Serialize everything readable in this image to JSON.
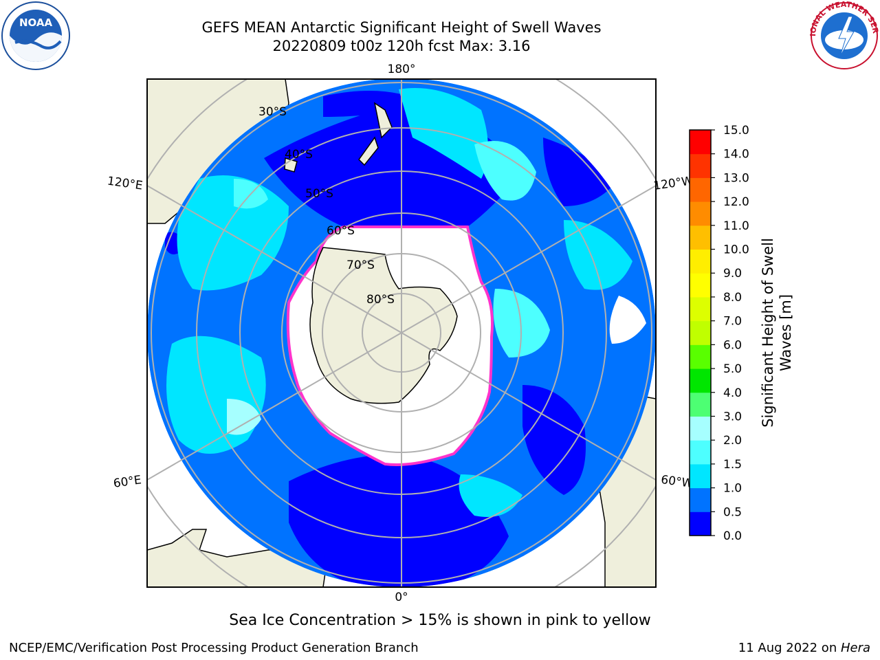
{
  "title": {
    "line1": "GEFS MEAN Antarctic Significant Height of Swell Waves",
    "line2": "20220809 t00z 120h fcst   Max: 3.16"
  },
  "logos": {
    "left": {
      "icon": "noaa-logo-icon",
      "text": "NOAA"
    },
    "right": {
      "icon": "nws-logo-icon",
      "text": "NATIONAL WEATHER SERVICE"
    }
  },
  "map": {
    "projection": "south-polar-stereographic",
    "longitude_labels": [
      "180°",
      "120°E",
      "120°W",
      "60°E",
      "60°W",
      "0°"
    ],
    "latitude_labels": [
      "30°S",
      "40°S",
      "50°S",
      "60°S",
      "70°S",
      "80°S"
    ],
    "colors": {
      "land": "#efefdc",
      "ice": "#ffffff",
      "ice_edge": "#ff33cc",
      "grid": "#b0b0b0"
    }
  },
  "colorbar": {
    "label": "Significant Height of Swell Waves [m]",
    "label_line1": "Significant Height of Swell",
    "label_line2": "Waves [m]",
    "ticks": [
      "15.0",
      "14.0",
      "13.0",
      "12.0",
      "11.0",
      "10.0",
      "9.0",
      "8.0",
      "7.0",
      "6.0",
      "5.0",
      "4.0",
      "3.0",
      "2.0",
      "1.5",
      "1.0",
      "0.5",
      "0.0"
    ],
    "bins": [
      {
        "from": 0.0,
        "to": 0.5,
        "color": "#0000ff"
      },
      {
        "from": 0.5,
        "to": 1.0,
        "color": "#0073ff"
      },
      {
        "from": 1.0,
        "to": 1.5,
        "color": "#00e6ff"
      },
      {
        "from": 1.5,
        "to": 2.0,
        "color": "#4dffff"
      },
      {
        "from": 2.0,
        "to": 3.0,
        "color": "#a6ffff"
      },
      {
        "from": 3.0,
        "to": 4.0,
        "color": "#4dff73"
      },
      {
        "from": 4.0,
        "to": 5.0,
        "color": "#00e600"
      },
      {
        "from": 5.0,
        "to": 6.0,
        "color": "#59ff00"
      },
      {
        "from": 6.0,
        "to": 7.0,
        "color": "#c0ff00"
      },
      {
        "from": 7.0,
        "to": 8.0,
        "color": "#ddff00"
      },
      {
        "from": 8.0,
        "to": 9.0,
        "color": "#ffff00"
      },
      {
        "from": 9.0,
        "to": 10.0,
        "color": "#ffee00"
      },
      {
        "from": 10.0,
        "to": 11.0,
        "color": "#ffbf00"
      },
      {
        "from": 11.0,
        "to": 12.0,
        "color": "#ff8c00"
      },
      {
        "from": 12.0,
        "to": 13.0,
        "color": "#ff6600"
      },
      {
        "from": 13.0,
        "to": 14.0,
        "color": "#ff3300"
      },
      {
        "from": 14.0,
        "to": 15.0,
        "color": "#ff0000"
      }
    ]
  },
  "footnote": "Sea Ice Concentration > 15% is shown in pink to yellow",
  "footer": {
    "left": "NCEP/EMC/Verification Post Processing Product Generation Branch",
    "right_date": "11 Aug 2022 on ",
    "right_host": "Hera"
  }
}
